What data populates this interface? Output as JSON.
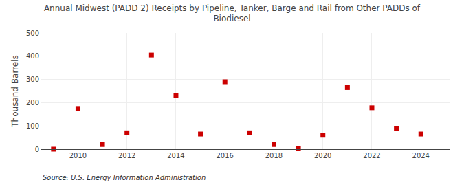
{
  "chart_data": {
    "type": "scatter",
    "title": "Annual Midwest (PADD 2) Receipts by Pipeline, Tanker, Barge and Rail from Other PADDs of\nBiodiesel",
    "ylabel": "Thousand Barrels",
    "annotations": [
      "Source: U.S. Energy Information Administration"
    ],
    "x": [
      2009,
      2010,
      2011,
      2012,
      2013,
      2014,
      2015,
      2016,
      2017,
      2018,
      2019,
      2020,
      2021,
      2022,
      2023,
      2024
    ],
    "values": [
      0,
      175,
      20,
      70,
      405,
      230,
      65,
      290,
      70,
      20,
      2,
      60,
      265,
      178,
      88,
      65
    ],
    "color": "#cc0000",
    "marker": "square",
    "xlim": [
      2008.5,
      2025.2
    ],
    "xticks": [
      2010,
      2012,
      2014,
      2016,
      2018,
      2020,
      2022,
      2024
    ],
    "ylim": [
      0,
      500
    ],
    "yticks": [
      0,
      100,
      200,
      300,
      400,
      500
    ],
    "grid": true
  }
}
